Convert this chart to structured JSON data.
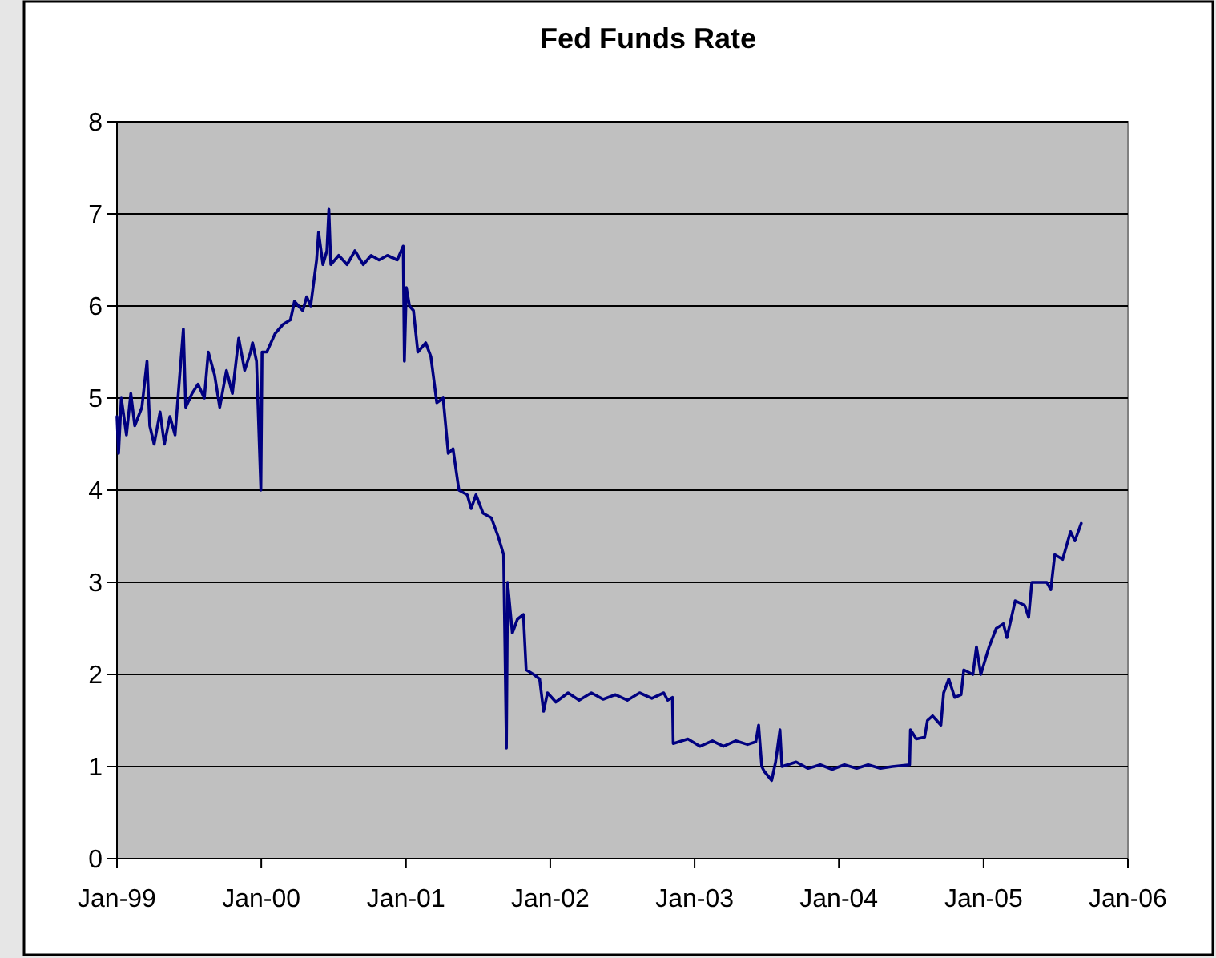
{
  "chart_data": {
    "type": "line",
    "title": "Fed Funds Rate",
    "color": "#000080",
    "grid": "y",
    "marker": "none",
    "line_style": "solid",
    "xlim": [
      "1999-01-01",
      "2006-01-01"
    ],
    "xticks": [
      {
        "value": "1999-01-01",
        "label": "Jan-99"
      },
      {
        "value": "2000-01-01",
        "label": "Jan-00"
      },
      {
        "value": "2001-01-01",
        "label": "Jan-01"
      },
      {
        "value": "2002-01-01",
        "label": "Jan-02"
      },
      {
        "value": "2003-01-01",
        "label": "Jan-03"
      },
      {
        "value": "2004-01-01",
        "label": "Jan-04"
      },
      {
        "value": "2005-01-01",
        "label": "Jan-05"
      },
      {
        "value": "2006-01-01",
        "label": "Jan-06"
      }
    ],
    "ylim": [
      0,
      8
    ],
    "yticks": [
      0,
      1,
      2,
      3,
      4,
      5,
      6,
      7,
      8
    ],
    "x": [
      "1999-01-01",
      "1999-01-05",
      "1999-01-12",
      "1999-01-25",
      "1999-02-05",
      "1999-02-15",
      "1999-03-05",
      "1999-03-18",
      "1999-03-25",
      "1999-04-05",
      "1999-04-20",
      "1999-05-01",
      "1999-05-15",
      "1999-05-28",
      "1999-06-18",
      "1999-06-24",
      "1999-07-10",
      "1999-07-25",
      "1999-08-10",
      "1999-08-20",
      "1999-09-05",
      "1999-09-18",
      "1999-10-05",
      "1999-10-20",
      "1999-11-05",
      "1999-11-20",
      "1999-12-05",
      "1999-12-10",
      "1999-12-20",
      "1999-12-31",
      "2000-01-03",
      "2000-01-15",
      "2000-02-05",
      "2000-02-25",
      "2000-03-15",
      "2000-03-25",
      "2000-04-15",
      "2000-04-25",
      "2000-05-05",
      "2000-05-20",
      "2000-05-25",
      "2000-06-05",
      "2000-06-15",
      "2000-06-20",
      "2000-06-25",
      "2000-07-15",
      "2000-08-05",
      "2000-08-25",
      "2000-09-15",
      "2000-10-05",
      "2000-10-25",
      "2000-11-15",
      "2000-12-10",
      "2000-12-25",
      "2000-12-28",
      "2001-01-02",
      "2001-01-10",
      "2001-01-20",
      "2001-01-31",
      "2001-02-20",
      "2001-03-05",
      "2001-03-20",
      "2001-04-05",
      "2001-04-18",
      "2001-04-30",
      "2001-05-15",
      "2001-06-05",
      "2001-06-15",
      "2001-06-27",
      "2001-07-15",
      "2001-08-05",
      "2001-08-22",
      "2001-09-05",
      "2001-09-12",
      "2001-09-15",
      "2001-09-27",
      "2001-10-10",
      "2001-10-25",
      "2001-11-01",
      "2001-11-20",
      "2001-12-05",
      "2001-12-15",
      "2001-12-25",
      "2002-01-15",
      "2002-02-15",
      "2002-03-15",
      "2002-04-15",
      "2002-05-15",
      "2002-06-15",
      "2002-07-15",
      "2002-08-15",
      "2002-09-15",
      "2002-10-15",
      "2002-10-25",
      "2002-11-06",
      "2002-11-08",
      "2002-12-15",
      "2003-01-15",
      "2003-02-15",
      "2003-03-15",
      "2003-04-15",
      "2003-05-15",
      "2003-06-05",
      "2003-06-12",
      "2003-06-20",
      "2003-06-26",
      "2003-07-15",
      "2003-07-25",
      "2003-08-05",
      "2003-08-10",
      "2003-09-15",
      "2003-10-15",
      "2003-11-15",
      "2003-12-15",
      "2004-01-15",
      "2004-02-15",
      "2004-03-15",
      "2004-04-15",
      "2004-05-15",
      "2004-06-28",
      "2004-06-30",
      "2004-07-15",
      "2004-08-05",
      "2004-08-12",
      "2004-08-25",
      "2004-09-15",
      "2004-09-22",
      "2004-10-05",
      "2004-10-20",
      "2004-11-05",
      "2004-11-12",
      "2004-12-05",
      "2004-12-14",
      "2004-12-25",
      "2005-01-15",
      "2005-02-02",
      "2005-02-20",
      "2005-03-01",
      "2005-03-22",
      "2005-04-15",
      "2005-04-25",
      "2005-05-03",
      "2005-06-10",
      "2005-06-20",
      "2005-06-30",
      "2005-07-20",
      "2005-08-09",
      "2005-08-20",
      "2005-09-05"
    ],
    "values": [
      4.8,
      4.4,
      5.0,
      4.6,
      5.05,
      4.7,
      4.9,
      5.4,
      4.7,
      4.5,
      4.85,
      4.5,
      4.8,
      4.6,
      5.75,
      4.9,
      5.05,
      5.15,
      5.0,
      5.5,
      5.25,
      4.9,
      5.3,
      5.05,
      5.65,
      5.3,
      5.5,
      5.6,
      5.4,
      4.0,
      5.5,
      5.5,
      5.7,
      5.8,
      5.85,
      6.05,
      5.95,
      6.1,
      6.0,
      6.5,
      6.8,
      6.45,
      6.6,
      7.05,
      6.45,
      6.55,
      6.45,
      6.6,
      6.45,
      6.55,
      6.5,
      6.55,
      6.5,
      6.65,
      5.4,
      6.2,
      6.0,
      5.95,
      5.5,
      5.6,
      5.45,
      4.95,
      5.0,
      4.4,
      4.45,
      4.0,
      3.95,
      3.8,
      3.95,
      3.75,
      3.7,
      3.5,
      3.3,
      1.2,
      3.0,
      2.45,
      2.6,
      2.65,
      2.05,
      2.0,
      1.95,
      1.6,
      1.8,
      1.7,
      1.8,
      1.72,
      1.8,
      1.73,
      1.78,
      1.72,
      1.8,
      1.74,
      1.8,
      1.72,
      1.75,
      1.25,
      1.3,
      1.22,
      1.28,
      1.22,
      1.28,
      1.24,
      1.27,
      1.45,
      1.0,
      0.95,
      0.85,
      1.05,
      1.4,
      1.0,
      1.05,
      0.98,
      1.02,
      0.97,
      1.02,
      0.98,
      1.02,
      0.98,
      1.0,
      1.02,
      1.4,
      1.3,
      1.32,
      1.5,
      1.55,
      1.45,
      1.8,
      1.95,
      1.75,
      1.78,
      2.05,
      2.0,
      2.3,
      2.0,
      2.3,
      2.5,
      2.55,
      2.4,
      2.8,
      2.75,
      2.62,
      3.0,
      3.0,
      2.92,
      3.3,
      3.25,
      3.55,
      3.45,
      3.64
    ]
  }
}
